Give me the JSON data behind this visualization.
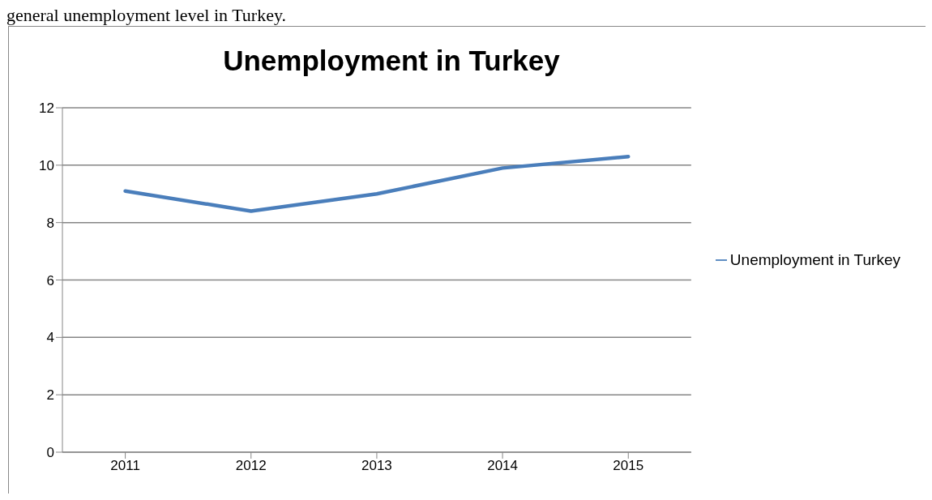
{
  "chart_data": {
    "type": "line",
    "title": "Unemployment in Turkey",
    "annotations": [
      "general unemployment level in Turkey."
    ],
    "categories": [
      "2011",
      "2012",
      "2013",
      "2014",
      "2015"
    ],
    "series": [
      {
        "name": "Unemployment in Turkey",
        "color": "#4a7ebb",
        "values": [
          9.1,
          8.4,
          9.0,
          9.9,
          10.3
        ]
      }
    ],
    "ylim": [
      0,
      12
    ],
    "yticks": [
      0,
      2,
      4,
      6,
      8,
      10,
      12
    ],
    "grid": "y",
    "legend": "right",
    "marker": "none",
    "line_style": "solid"
  }
}
